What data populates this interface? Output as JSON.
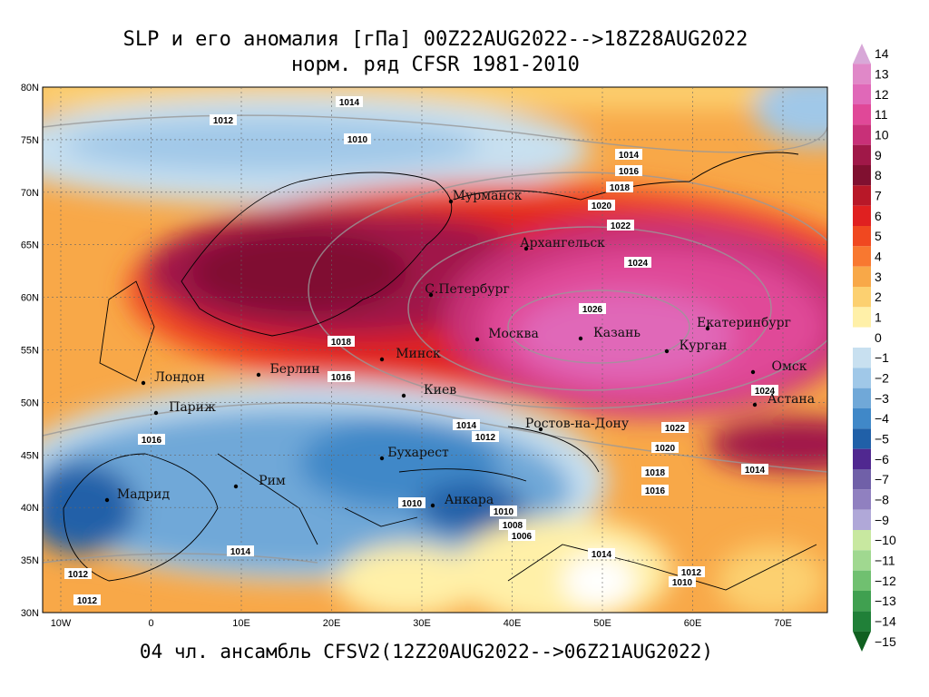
{
  "header": {
    "title": [
      "SLP и его аномалия [гПа] 00Z22AUG2022-->18Z28AUG2022",
      "норм. ряд CFSR 1981-2010"
    ],
    "footer": "04 чл. ансамбль CFSV2(12Z20AUG2022-->06Z21AUG2022)"
  },
  "map": {
    "lat_labels": [
      "80N",
      "75N",
      "70N",
      "65N",
      "60N",
      "55N",
      "50N",
      "45N",
      "40N",
      "35N",
      "30N"
    ],
    "lon_labels": [
      "10W",
      "0",
      "10E",
      "20E",
      "30E",
      "40E",
      "50E",
      "60E",
      "70E"
    ],
    "cities": [
      "Мурманск",
      "Архангельск",
      "С.Петербург",
      "Москва",
      "Казань",
      "Екатеринбург",
      "Курган",
      "Омск",
      "Астана",
      "Минск",
      "Берлин",
      "Лондон",
      "Париж",
      "Киев",
      "Ростов-на-Дону",
      "Бухарест",
      "Рим",
      "Мадрид",
      "Анкара"
    ],
    "isobar_labels": [
      "1014",
      "1012",
      "1010",
      "1014",
      "1016",
      "1018",
      "1020",
      "1022",
      "1024",
      "1026",
      "1018",
      "1016",
      "1014",
      "1012",
      "1024",
      "1022",
      "1020",
      "1018",
      "1016",
      "1014",
      "1016",
      "1010",
      "1010",
      "1008",
      "1006",
      "1014",
      "1014",
      "1012",
      "1012",
      "1012",
      "1010"
    ]
  },
  "colorbar": [
    {
      "label": "14",
      "color": "#d8a8d8"
    },
    {
      "label": "13",
      "color": "#e088c8"
    },
    {
      "label": "12",
      "color": "#e068b8"
    },
    {
      "label": "11",
      "color": "#e04898"
    },
    {
      "label": "10",
      "color": "#c83078"
    },
    {
      "label": "9",
      "color": "#a01848"
    },
    {
      "label": "8",
      "color": "#801030"
    },
    {
      "label": "7",
      "color": "#b81828"
    },
    {
      "label": "6",
      "color": "#e02020"
    },
    {
      "label": "5",
      "color": "#f04820"
    },
    {
      "label": "4",
      "color": "#f87830"
    },
    {
      "label": "3",
      "color": "#f8a848"
    },
    {
      "label": "2",
      "color": "#fcd070"
    },
    {
      "label": "1",
      "color": "#fff0a8"
    },
    {
      "label": "0",
      "color": "#ffffff"
    },
    {
      "label": "−1",
      "color": "#c8e0f0"
    },
    {
      "label": "−2",
      "color": "#a0c8e8"
    },
    {
      "label": "−3",
      "color": "#70a8d8"
    },
    {
      "label": "−4",
      "color": "#4088c8"
    },
    {
      "label": "−5",
      "color": "#2060a8"
    },
    {
      "label": "−6",
      "color": "#502890"
    },
    {
      "label": "−7",
      "color": "#7060a8"
    },
    {
      "label": "−8",
      "color": "#9080c0"
    },
    {
      "label": "−9",
      "color": "#b0a8d8"
    },
    {
      "label": "−10",
      "color": "#c8e8a0"
    },
    {
      "label": "−11",
      "color": "#a0d890"
    },
    {
      "label": "−12",
      "color": "#70c070"
    },
    {
      "label": "−13",
      "color": "#40a050"
    },
    {
      "label": "−14",
      "color": "#208038"
    },
    {
      "label": "−15",
      "color": "#106020"
    }
  ]
}
